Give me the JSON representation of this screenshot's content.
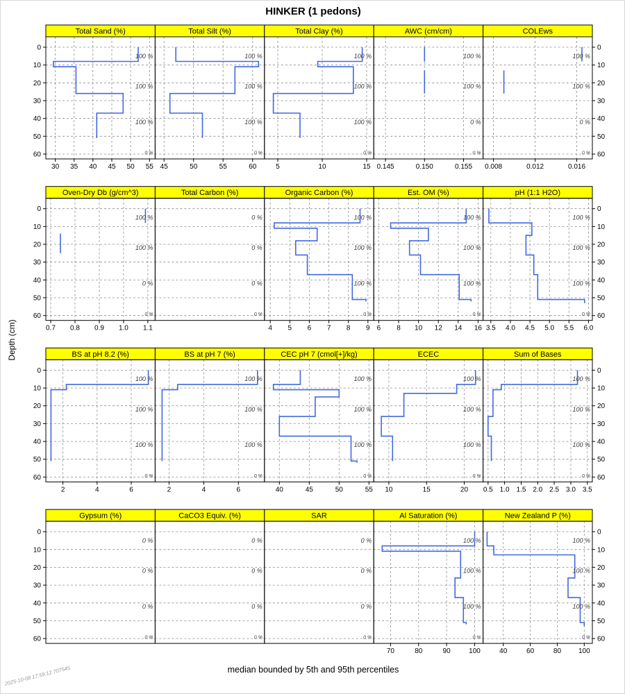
{
  "title": "HINKER (1 pedons)",
  "caption": "median bounded by 5th and 95th percentiles",
  "timestamp": "2025-10-08 17:59:12.707545",
  "ylabel": "Depth (cm)",
  "colors": {
    "median_line": "#4169E1",
    "strip_bg": "#FFFF00",
    "grid": "#8c8c8c",
    "annotation": "#3c3c3c"
  },
  "chart_data": {
    "type": "line",
    "layout": {
      "rows": 4,
      "cols": 5,
      "grid": "dashed",
      "y_axis": "depth, increasing downward, labels on both sides"
    },
    "depth_axis": {
      "label": "Depth (cm)",
      "ticks": [
        0,
        10,
        20,
        30,
        40,
        50,
        60
      ],
      "lim": [
        0,
        63
      ]
    },
    "annotation_depths": [
      5,
      22,
      42,
      59
    ],
    "panels": [
      {
        "id": "total-sand",
        "title": "Total Sand (%)",
        "xlim": [
          27.5,
          56.5
        ],
        "xticks": [
          {
            "v": 30,
            "label": "30"
          },
          {
            "v": 35,
            "label": "35"
          },
          {
            "v": 40,
            "label": "40"
          },
          {
            "v": 45,
            "label": "45"
          },
          {
            "v": 50,
            "label": "50"
          },
          {
            "v": 55,
            "label": "55"
          }
        ],
        "segments": [
          [
            0,
            8,
            52
          ],
          [
            8,
            11,
            29.5
          ],
          [
            11,
            26,
            35.5
          ],
          [
            26,
            37,
            48
          ],
          [
            37,
            51,
            41
          ]
        ],
        "cf_labels": [
          "100 %",
          "100 %",
          "100 %",
          "0 %"
        ]
      },
      {
        "id": "total-silt",
        "title": "Total Silt (%)",
        "xlim": [
          43.5,
          62
        ],
        "xticks": [
          {
            "v": 45,
            "label": "45"
          },
          {
            "v": 50,
            "label": "50"
          },
          {
            "v": 55,
            "label": "55"
          },
          {
            "v": 60,
            "label": "60"
          }
        ],
        "segments": [
          [
            0,
            8,
            47
          ],
          [
            8,
            11,
            61
          ],
          [
            11,
            26,
            57
          ],
          [
            26,
            37,
            46
          ],
          [
            37,
            51,
            51.5
          ]
        ],
        "cf_labels": [
          "100 %",
          "100 %",
          "100 %",
          "0 %"
        ]
      },
      {
        "id": "total-clay",
        "title": "Total Clay (%)",
        "xlim": [
          3.5,
          15.8
        ],
        "xticks": [
          {
            "v": 5,
            "label": "5"
          },
          {
            "v": 10,
            "label": "10"
          },
          {
            "v": 15,
            "label": "15"
          }
        ],
        "segments": [
          [
            0,
            8,
            14.5
          ],
          [
            8,
            11,
            9.5
          ],
          [
            11,
            26,
            13.5
          ],
          [
            26,
            37,
            4.5
          ],
          [
            37,
            51,
            7.5
          ]
        ],
        "cf_labels": [
          "100 %",
          "100 %",
          "100 %",
          "0 %"
        ]
      },
      {
        "id": "awc",
        "title": "AWC (cm/cm)",
        "xlim": [
          0.1435,
          0.1575
        ],
        "xticks": [
          {
            "v": 0.145,
            "label": "0.145"
          },
          {
            "v": 0.15,
            "label": "0.150"
          },
          {
            "v": 0.155,
            "label": "0.155"
          }
        ],
        "segments": [
          [
            0,
            8,
            0.15
          ],
          [
            13,
            26,
            0.15
          ]
        ],
        "cf_labels": [
          "100 %",
          "100 %",
          "0 %",
          "0 %"
        ]
      },
      {
        "id": "colews",
        "title": "COLEws",
        "xlim": [
          0.007,
          0.0175
        ],
        "xticks": [
          {
            "v": 0.008,
            "label": "0.008"
          },
          {
            "v": 0.012,
            "label": "0.012"
          },
          {
            "v": 0.016,
            "label": "0.016"
          }
        ],
        "segments": [
          [
            0,
            8,
            0.0165
          ],
          [
            13,
            26,
            0.009
          ]
        ],
        "cf_labels": [
          "100 %",
          "100 %",
          "0 %",
          "0 %"
        ]
      },
      {
        "id": "oven-dry-db",
        "title": "Oven-Dry Db (g/cm^3)",
        "xlim": [
          0.68,
          1.13
        ],
        "xticks": [
          {
            "v": 0.7,
            "label": "0.7"
          },
          {
            "v": 0.8,
            "label": "0.8"
          },
          {
            "v": 0.9,
            "label": "0.9"
          },
          {
            "v": 1.0,
            "label": "1.0"
          },
          {
            "v": 1.1,
            "label": "1.1"
          }
        ],
        "segments": [
          [
            0,
            8,
            1.09
          ],
          [
            14,
            25,
            0.74
          ]
        ],
        "cf_labels": [
          "100 %",
          "100 %",
          "0 %",
          "0 %"
        ]
      },
      {
        "id": "total-carbon",
        "title": "Total Carbon (%)",
        "xlim": [
          0,
          1
        ],
        "xticks": [],
        "segments": [],
        "cf_labels": [
          "0 %",
          "0 %",
          "0 %",
          "0 %"
        ]
      },
      {
        "id": "organic-carbon",
        "title": "Organic Carbon (%)",
        "xlim": [
          3.7,
          9.3
        ],
        "xticks": [
          {
            "v": 4,
            "label": "4"
          },
          {
            "v": 5,
            "label": "5"
          },
          {
            "v": 6,
            "label": "6"
          },
          {
            "v": 7,
            "label": "7"
          },
          {
            "v": 8,
            "label": "8"
          },
          {
            "v": 9,
            "label": "9"
          }
        ],
        "segments": [
          [
            0,
            8,
            8.6
          ],
          [
            8,
            11,
            4.2
          ],
          [
            11,
            18,
            6.4
          ],
          [
            18,
            26,
            5.3
          ],
          [
            26,
            37,
            5.9
          ],
          [
            37,
            51,
            8.2
          ],
          [
            51,
            52,
            8.9
          ]
        ],
        "cf_labels": [
          "100 %",
          "100 %",
          "100 %",
          "0 %"
        ]
      },
      {
        "id": "est-om",
        "title": "Est. OM (%)",
        "xlim": [
          5.5,
          16.5
        ],
        "xticks": [
          {
            "v": 6,
            "label": "6"
          },
          {
            "v": 8,
            "label": "8"
          },
          {
            "v": 10,
            "label": "10"
          },
          {
            "v": 12,
            "label": "12"
          },
          {
            "v": 14,
            "label": "14"
          },
          {
            "v": 16,
            "label": "16"
          }
        ],
        "segments": [
          [
            0,
            8,
            14.8
          ],
          [
            8,
            11,
            7.2
          ],
          [
            11,
            18,
            11
          ],
          [
            18,
            26,
            9.1
          ],
          [
            26,
            37,
            10.2
          ],
          [
            37,
            51,
            14.1
          ],
          [
            51,
            52,
            15.3
          ]
        ],
        "cf_labels": [
          "100 %",
          "100 %",
          "100 %",
          "0 %"
        ]
      },
      {
        "id": "ph-1-1-h2o",
        "title": "pH (1:1 H2O)",
        "xlim": [
          3.3,
          6.1
        ],
        "xticks": [
          {
            "v": 3.5,
            "label": "3.5"
          },
          {
            "v": 4.0,
            "label": "4.0"
          },
          {
            "v": 4.5,
            "label": "4.5"
          },
          {
            "v": 5.0,
            "label": "5.0"
          },
          {
            "v": 5.5,
            "label": "5.5"
          },
          {
            "v": 6.0,
            "label": "6.0"
          }
        ],
        "segments": [
          [
            0,
            8,
            3.45
          ],
          [
            8,
            15,
            4.55
          ],
          [
            15,
            26,
            4.4
          ],
          [
            26,
            37,
            4.6
          ],
          [
            37,
            51,
            4.7
          ],
          [
            51,
            53,
            5.9
          ]
        ],
        "cf_labels": [
          "100 %",
          "100 %",
          "100 %",
          "0 %"
        ]
      },
      {
        "id": "bs-ph-8-2",
        "title": "BS at pH 8.2 (%)",
        "xlim": [
          1.0,
          7.4
        ],
        "xticks": [
          {
            "v": 2,
            "label": "2"
          },
          {
            "v": 4,
            "label": "4"
          },
          {
            "v": 6,
            "label": "6"
          }
        ],
        "segments": [
          [
            0,
            8,
            7.0
          ],
          [
            8,
            11,
            2.2
          ],
          [
            11,
            51,
            1.3
          ]
        ],
        "cf_labels": [
          "100 %",
          "100 %",
          "100 %",
          "0 %"
        ]
      },
      {
        "id": "bs-ph-7",
        "title": "BS at pH 7 (%)",
        "xlim": [
          1.2,
          7.5
        ],
        "xticks": [
          {
            "v": 2,
            "label": "2"
          },
          {
            "v": 4,
            "label": "4"
          },
          {
            "v": 6,
            "label": "6"
          }
        ],
        "segments": [
          [
            0,
            8,
            7.1
          ],
          [
            8,
            11,
            2.5
          ],
          [
            11,
            51,
            1.6
          ]
        ],
        "cf_labels": [
          "100 %",
          "100 %",
          "100 %",
          "0 %"
        ]
      },
      {
        "id": "cec-ph-7",
        "title": "CEC pH 7 (cmol[+]/kg)",
        "xlim": [
          37.5,
          55.8
        ],
        "xticks": [
          {
            "v": 40,
            "label": "40"
          },
          {
            "v": 45,
            "label": "45"
          },
          {
            "v": 50,
            "label": "50"
          },
          {
            "v": 55,
            "label": "55"
          }
        ],
        "segments": [
          [
            0,
            8,
            43.5
          ],
          [
            8,
            11,
            39
          ],
          [
            11,
            15,
            50
          ],
          [
            15,
            26,
            46
          ],
          [
            26,
            37,
            40
          ],
          [
            37,
            51,
            52
          ],
          [
            51,
            52,
            53
          ]
        ],
        "cf_labels": [
          "100 %",
          "100 %",
          "100 %",
          "0 %"
        ]
      },
      {
        "id": "ecec",
        "title": "ECEC",
        "xlim": [
          8,
          22.5
        ],
        "xticks": [
          {
            "v": 10,
            "label": "10"
          },
          {
            "v": 15,
            "label": "15"
          },
          {
            "v": 20,
            "label": "20"
          }
        ],
        "segments": [
          [
            0,
            8,
            21.5
          ],
          [
            8,
            13,
            19
          ],
          [
            13,
            26,
            12
          ],
          [
            26,
            37,
            9
          ],
          [
            37,
            51,
            10.5
          ]
        ],
        "cf_labels": [
          "100 %",
          "100 %",
          "100 %",
          "0 %"
        ]
      },
      {
        "id": "sum-of-bases",
        "title": "Sum of Bases",
        "xlim": [
          0.35,
          3.65
        ],
        "xticks": [
          {
            "v": 0.5,
            "label": "0.5"
          },
          {
            "v": 1.0,
            "label": "1.0"
          },
          {
            "v": 1.5,
            "label": "1.5"
          },
          {
            "v": 2.0,
            "label": "2.0"
          },
          {
            "v": 2.5,
            "label": "2.5"
          },
          {
            "v": 3.0,
            "label": "3.0"
          },
          {
            "v": 3.5,
            "label": "3.5"
          }
        ],
        "segments": [
          [
            0,
            8,
            3.2
          ],
          [
            8,
            11,
            0.9
          ],
          [
            11,
            26,
            0.65
          ],
          [
            26,
            37,
            0.5
          ],
          [
            37,
            51,
            0.6
          ]
        ],
        "cf_labels": [
          "100 %",
          "100 %",
          "100 %",
          "0 %"
        ]
      },
      {
        "id": "gypsum",
        "title": "Gypsum (%)",
        "xlim": [
          0,
          1
        ],
        "xticks": [],
        "segments": [],
        "cf_labels": [
          "0 %",
          "0 %",
          "0 %",
          "0 %"
        ]
      },
      {
        "id": "caco3-equiv",
        "title": "CaCO3 Equiv. (%)",
        "xlim": [
          0,
          1
        ],
        "xticks": [],
        "segments": [],
        "cf_labels": [
          "0 %",
          "0 %",
          "0 %",
          "0 %"
        ]
      },
      {
        "id": "sar",
        "title": "SAR",
        "xlim": [
          0,
          1
        ],
        "xticks": [],
        "segments": [],
        "cf_labels": [
          "0 %",
          "0 %",
          "0 %",
          "0 %"
        ]
      },
      {
        "id": "al-saturation",
        "title": "Al Saturation (%)",
        "xlim": [
          64,
          103
        ],
        "xticks": [
          {
            "v": 70,
            "label": "70"
          },
          {
            "v": 80,
            "label": "80"
          },
          {
            "v": 90,
            "label": "90"
          },
          {
            "v": 100,
            "label": "100"
          }
        ],
        "segments": [
          [
            0,
            8,
            100
          ],
          [
            8,
            11,
            67
          ],
          [
            11,
            26,
            95
          ],
          [
            26,
            37,
            93
          ],
          [
            37,
            51,
            96
          ],
          [
            51,
            52,
            97
          ]
        ],
        "cf_labels": [
          "100 %",
          "100 %",
          "100 %",
          "0 %"
        ]
      },
      {
        "id": "new-zealand-p",
        "title": "New Zealand P (%)",
        "xlim": [
          25,
          106
        ],
        "xticks": [
          {
            "v": 40,
            "label": "40"
          },
          {
            "v": 60,
            "label": "60"
          },
          {
            "v": 80,
            "label": "80"
          },
          {
            "v": 100,
            "label": "100"
          }
        ],
        "segments": [
          [
            0,
            8,
            28
          ],
          [
            8,
            13,
            33
          ],
          [
            13,
            26,
            93
          ],
          [
            26,
            37,
            88
          ],
          [
            37,
            51,
            97
          ],
          [
            51,
            53,
            100
          ]
        ],
        "cf_labels": [
          "100 %",
          "100 %",
          "100 %",
          "0 %"
        ]
      }
    ]
  }
}
